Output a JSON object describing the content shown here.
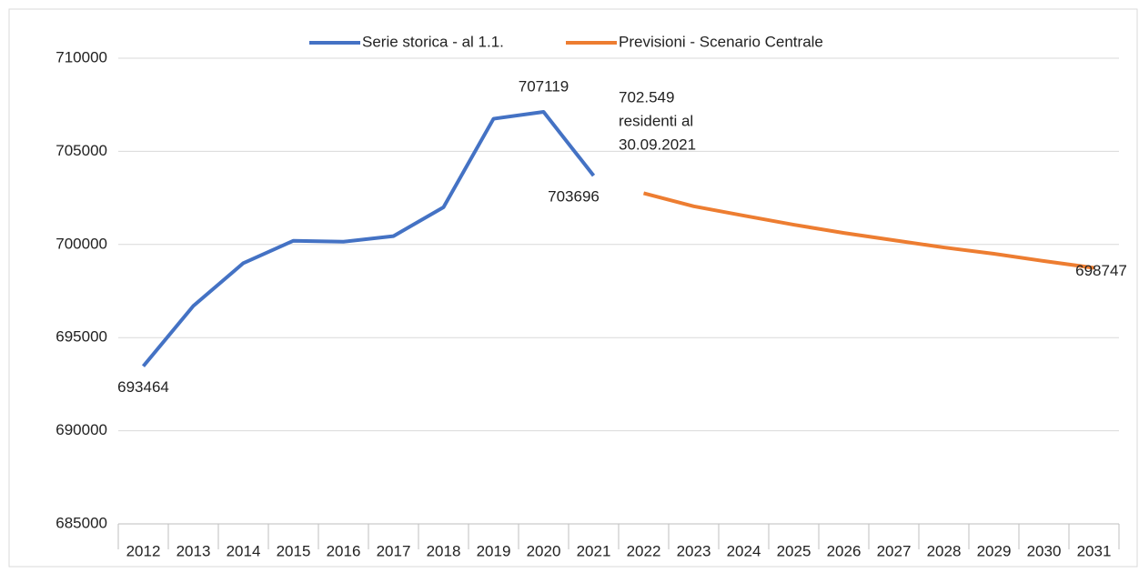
{
  "chart_data": {
    "type": "line",
    "categories": [
      "2012",
      "2013",
      "2014",
      "2015",
      "2016",
      "2017",
      "2018",
      "2019",
      "2020",
      "2021",
      "2022",
      "2023",
      "2024",
      "2025",
      "2026",
      "2027",
      "2028",
      "2029",
      "2030",
      "2031"
    ],
    "series": [
      {
        "name": "Serie storica - al 1.1.",
        "color": "#4472c4",
        "values": [
          693464,
          696700,
          699000,
          700200,
          700150,
          700450,
          702000,
          706750,
          707119,
          703696,
          null,
          null,
          null,
          null,
          null,
          null,
          null,
          null,
          null,
          null
        ]
      },
      {
        "name": "Previsioni - Scenario Centrale",
        "color": "#ed7d31",
        "values": [
          null,
          null,
          null,
          null,
          null,
          null,
          null,
          null,
          null,
          null,
          702750,
          702050,
          701550,
          701060,
          700620,
          700230,
          699840,
          699500,
          699110,
          698747
        ]
      }
    ],
    "annotation": [
      "702.549",
      "residenti al",
      "30.09.2021"
    ],
    "ylim": [
      685000,
      710000
    ],
    "yticks": [
      685000,
      690000,
      695000,
      700000,
      705000,
      710000
    ],
    "grid": true,
    "legend": "top"
  }
}
